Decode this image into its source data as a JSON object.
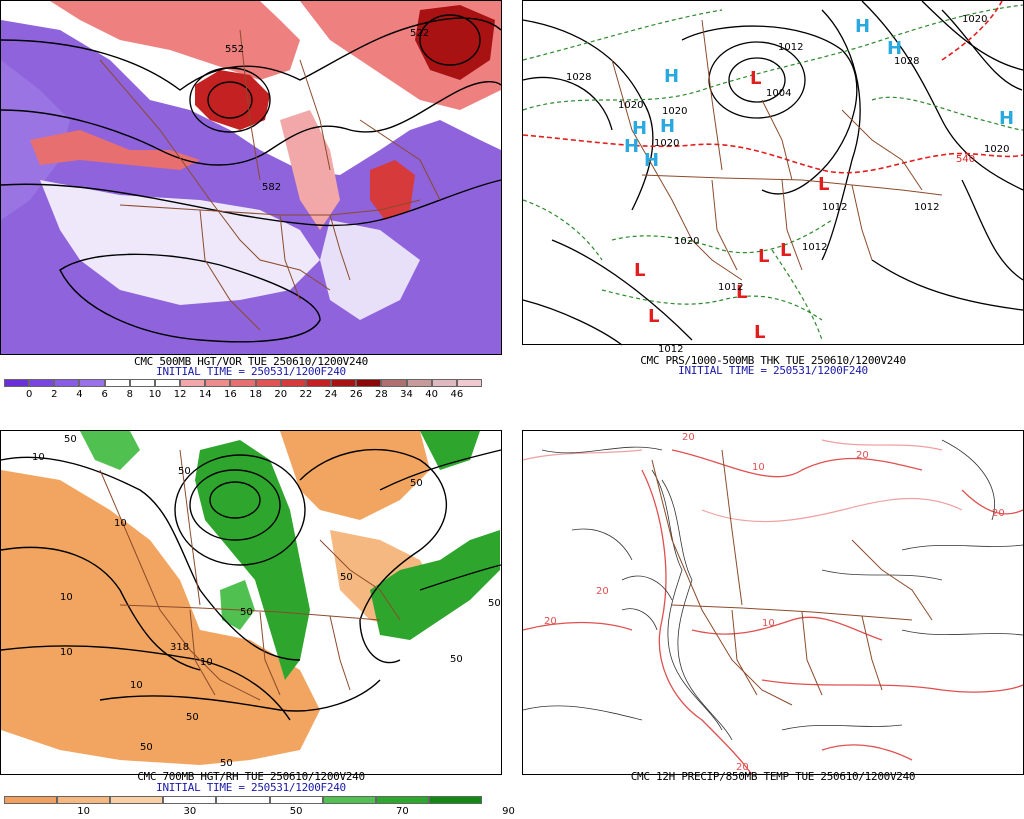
{
  "panels": {
    "p1": {
      "caption": "CMC 500MB HGT/VOR TUE 250610/1200V240",
      "initial_time": "INITIAL TIME = 250531/1200F240",
      "legend_values": [
        "0",
        "2",
        "4",
        "6",
        "8",
        "10",
        "12",
        "14",
        "16",
        "18",
        "20",
        "22",
        "24",
        "26",
        "28",
        "34",
        "40",
        "46"
      ],
      "legend_colors": [
        "#6a2fd8",
        "#7a45e0",
        "#8a5ce6",
        "#9a70ea",
        "#ffffff",
        "#ffffff",
        "#ffffff",
        "#f2a8a8",
        "#ee8b8b",
        "#e86f6f",
        "#e05454",
        "#d63a3a",
        "#c42222",
        "#a81212",
        "#8c0808",
        "#b07070",
        "#c89a9a",
        "#e0b8c0",
        "#f0c8d0"
      ],
      "labels": [
        "552",
        "522",
        "582"
      ]
    },
    "p2": {
      "caption": "CMC PRS/1000-500MB THK TUE 250610/1200V240",
      "initial_time": "INITIAL TIME = 250531/1200F240",
      "highs": [
        "H",
        "H",
        "H",
        "H",
        "H",
        "H",
        "H",
        "H"
      ],
      "lows": [
        "L",
        "L",
        "L",
        "L",
        "L",
        "L",
        "L",
        "L"
      ],
      "labels": [
        "1020",
        "1012",
        "1028",
        "1004",
        "1020",
        "1020",
        "1020",
        "1012",
        "1020",
        "1012",
        "1012",
        "1012",
        "1012",
        "1028",
        "1020",
        "540"
      ]
    },
    "p3": {
      "caption": "CMC 700MB HGT/RH TUE 250610/1200V240",
      "initial_time": "INITIAL TIME = 250531/1200F240",
      "legend_values": [
        "10",
        "30",
        "50",
        "70",
        "90"
      ],
      "legend_colors": [
        "#f0a060",
        "#f5b880",
        "#f8d0a8",
        "#ffffff",
        "#ffffff",
        "#ffffff",
        "#50c050",
        "#2ca82c",
        "#108a10"
      ],
      "labels": [
        "50",
        "10",
        "10",
        "50",
        "50",
        "50",
        "318",
        "10",
        "10",
        "50",
        "50",
        "50",
        "50",
        "10",
        "10",
        "50",
        "50"
      ]
    },
    "p4": {
      "caption": "CMC 12H PRECIP/850MB TEMP TUE 250610/1200V240",
      "labels": [
        "20",
        "10",
        "20",
        "20",
        "20",
        "20",
        "10",
        "20"
      ]
    }
  },
  "colors": {
    "vort_purple": "#8e63dc",
    "vort_red": "#e04848",
    "rh_orange": "#f2a560",
    "rh_green": "#2ea62e",
    "border": "#8b4a2b",
    "thickness_green": "#2d8a2d",
    "thickness_red": "#e02020",
    "high_blue": "#29a9e0",
    "low_red": "#e01e1e",
    "temp_red": "#e05050"
  }
}
